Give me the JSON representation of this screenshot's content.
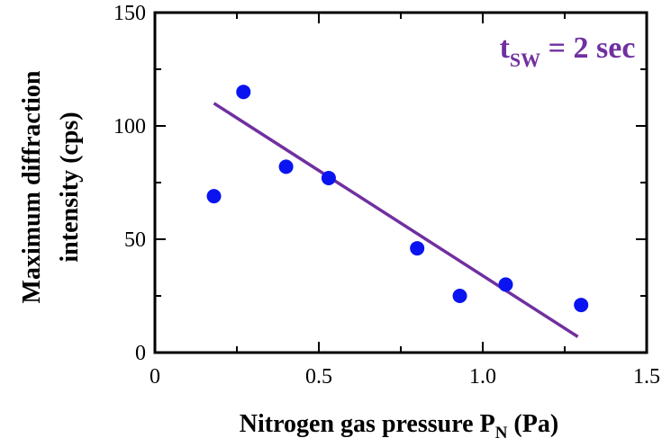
{
  "chart_data": {
    "type": "scatter",
    "title": "",
    "xlabel": {
      "main": "Nitrogen gas pressure P",
      "sub": "N",
      "unit": " (Pa)"
    },
    "ylabel": {
      "line1": "Maximum diffraction",
      "line2": "intensity (cps)"
    },
    "xlim": [
      0,
      1.5
    ],
    "ylim": [
      0,
      150
    ],
    "xticks": [
      0,
      0.5,
      1.0,
      1.5
    ],
    "xtick_labels": [
      "0",
      "0.5",
      "1.0",
      "1.5"
    ],
    "yticks": [
      0,
      50,
      100,
      150
    ],
    "ytick_labels": [
      "0",
      "50",
      "100",
      "150"
    ],
    "x_minor_step": 0.25,
    "y_minor_step": 25,
    "grid": false,
    "series": [
      {
        "color": "#0a14f0",
        "x": [
          0.18,
          0.27,
          0.4,
          0.53,
          0.8,
          0.93,
          1.07,
          1.3
        ],
        "y": [
          69,
          115,
          82,
          77,
          46,
          25,
          30,
          21
        ]
      }
    ],
    "fit_line": {
      "color": "#7030a0",
      "x": [
        0.18,
        1.29
      ],
      "y": [
        110,
        7
      ]
    },
    "annotation": {
      "main": "t",
      "sub": "SW",
      "rest": " = 2 sec",
      "color": "#7030a0"
    }
  }
}
